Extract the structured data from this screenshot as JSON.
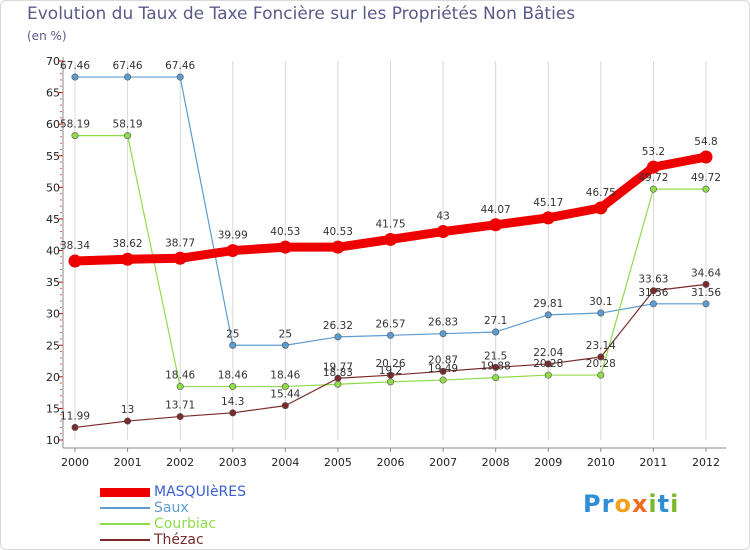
{
  "header": {
    "title": "Evolution du Taux de Taxe Foncière sur les Propriétés Non Bâties",
    "unit": "(en %)"
  },
  "logo": {
    "letters": [
      "P",
      "r",
      "o",
      "x",
      "i",
      "t",
      "i"
    ],
    "colors": [
      "#2e8fd6",
      "#2e8fd6",
      "#f0a21a",
      "#f26b1d",
      "#7ab927",
      "#2e8fd6",
      "#7ab927"
    ]
  },
  "chart_data": {
    "type": "line",
    "title": "Evolution du Taux de Taxe Foncière sur les Propriétés Non Bâties",
    "ylabel": "(en %)",
    "xlabel": "",
    "ylim": [
      10,
      70
    ],
    "yticks": [
      10,
      15,
      20,
      25,
      30,
      35,
      40,
      45,
      50,
      55,
      60,
      65,
      70
    ],
    "categories": [
      "2000",
      "2001",
      "2002",
      "2003",
      "2004",
      "2005",
      "2006",
      "2007",
      "2008",
      "2009",
      "2010",
      "2011",
      "2012"
    ],
    "legend_position": "bottom-left",
    "series": [
      {
        "name": "MASQUIèRES",
        "color": "#ee0000",
        "emphasis": true,
        "values": [
          38.34,
          38.62,
          38.77,
          39.99,
          40.53,
          40.53,
          41.75,
          43,
          44.07,
          45.17,
          46.75,
          53.2,
          54.8
        ],
        "labels": [
          "38.34",
          "38.62",
          "38.77",
          "39.99",
          "40.53",
          "40.53",
          "41.75",
          "43",
          "44.07",
          "45.17",
          "46.75",
          "53.2",
          "54.8"
        ]
      },
      {
        "name": "Saux",
        "color": "#5d9ccf",
        "values": [
          67.46,
          67.46,
          67.46,
          25,
          25,
          26.32,
          26.57,
          26.83,
          27.1,
          29.81,
          30.1,
          31.56,
          31.56
        ],
        "labels": [
          "67.46",
          "67.46",
          "67.46",
          "25",
          "25",
          "26.32",
          "26.57",
          "26.83",
          "27.1",
          "29.81",
          "30.1",
          "31.56",
          "31.56"
        ]
      },
      {
        "name": "Courbiac",
        "color": "#8fdc4a",
        "values": [
          58.19,
          58.19,
          18.46,
          18.46,
          18.46,
          18.83,
          19.2,
          19.49,
          19.88,
          20.28,
          20.28,
          49.72,
          49.72
        ],
        "labels": [
          "58.19",
          "58.19",
          "18.46",
          "18.46",
          "18.46",
          "18.83",
          "19.2",
          "19.49",
          "19.88",
          "20.28",
          "20.28",
          "49.72",
          "49.72"
        ]
      },
      {
        "name": "Thézac",
        "color": "#7a2a2a",
        "values": [
          11.99,
          13,
          13.71,
          14.3,
          15.44,
          19.77,
          20.26,
          20.87,
          21.5,
          22.04,
          23.14,
          33.63,
          34.64
        ],
        "labels": [
          "11.99",
          "13",
          "13.71",
          "14.3",
          "15.44",
          "19.77",
          "20.26",
          "20.87",
          "21.5",
          "22.04",
          "23.14",
          "33.63",
          "34.64"
        ]
      }
    ]
  }
}
